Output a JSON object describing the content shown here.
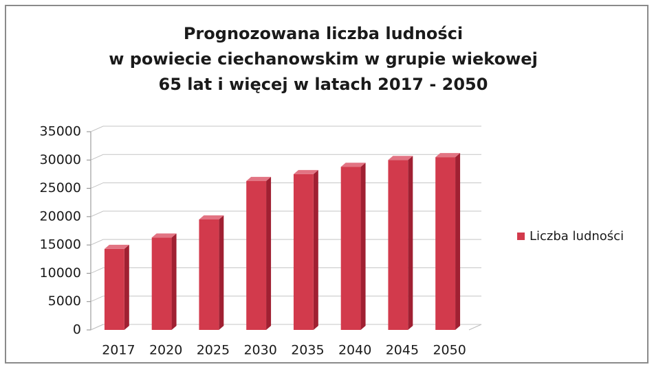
{
  "chart_data": {
    "type": "bar",
    "title": [
      "Prognozowana liczba ludności",
      "w powiecie ciechanowskim w grupie wiekowej",
      "65 lat i więcej w latach 2017 - 2050"
    ],
    "categories": [
      "2017",
      "2020",
      "2025",
      "2030",
      "2035",
      "2040",
      "2045",
      "2050"
    ],
    "series": [
      {
        "name": "Liczba ludności",
        "color": "#d23a4c",
        "values": [
          14300,
          16300,
          19500,
          26300,
          27500,
          28800,
          30000,
          30500
        ]
      }
    ],
    "ylim": [
      0,
      35000
    ],
    "yticks": [
      0,
      5000,
      10000,
      15000,
      20000,
      25000,
      30000,
      35000
    ],
    "grid": true,
    "legend": "right"
  }
}
